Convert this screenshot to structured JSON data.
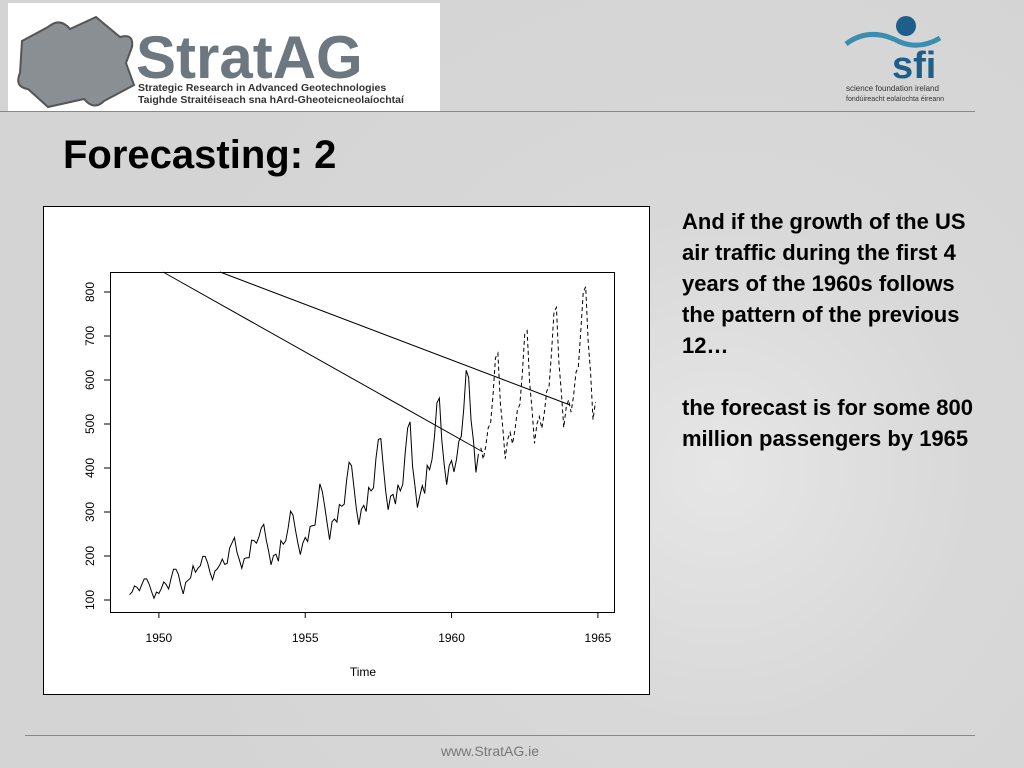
{
  "header": {
    "logo_name": "StratAG",
    "logo_line1": "Strategic Research in Advanced Geotechnologies",
    "logo_line2": "Taighde Straitéiseach sna hArd-Gheoteicneolaíochtaí",
    "sfi_name": "sfi",
    "sfi_line1": "science foundation ireland",
    "sfi_line2": "fondúireacht eolaíochta éireann"
  },
  "title": "Forecasting: 2",
  "chart_data": {
    "type": "line",
    "xlabel": "Time",
    "xlim": [
      1948.33,
      1965.55
    ],
    "ylim": [
      72.7,
      845.5
    ],
    "xticks": [
      1950,
      1955,
      1960,
      1965
    ],
    "yticks": [
      100,
      200,
      300,
      400,
      500,
      600,
      700,
      800
    ],
    "series": [
      {
        "color": "#000000",
        "line_style": "solid",
        "x": [
          1949,
          1949.083,
          1949.167,
          1949.25,
          1949.333,
          1949.417,
          1949.5,
          1949.583,
          1949.667,
          1949.75,
          1949.833,
          1949.917,
          1950,
          1950.083,
          1950.167,
          1950.25,
          1950.333,
          1950.417,
          1950.5,
          1950.583,
          1950.667,
          1950.75,
          1950.833,
          1950.917,
          1951,
          1951.083,
          1951.167,
          1951.25,
          1951.333,
          1951.417,
          1951.5,
          1951.583,
          1951.667,
          1951.75,
          1951.833,
          1951.917,
          1952,
          1952.083,
          1952.167,
          1952.25,
          1952.333,
          1952.417,
          1952.5,
          1952.583,
          1952.667,
          1952.75,
          1952.833,
          1952.917,
          1953,
          1953.083,
          1953.167,
          1953.25,
          1953.333,
          1953.417,
          1953.5,
          1953.583,
          1953.667,
          1953.75,
          1953.833,
          1953.917,
          1954,
          1954.083,
          1954.167,
          1954.25,
          1954.333,
          1954.417,
          1954.5,
          1954.583,
          1954.667,
          1954.75,
          1954.833,
          1954.917,
          1955,
          1955.083,
          1955.167,
          1955.25,
          1955.333,
          1955.417,
          1955.5,
          1955.583,
          1955.667,
          1955.75,
          1955.833,
          1955.917,
          1956,
          1956.083,
          1956.167,
          1956.25,
          1956.333,
          1956.417,
          1956.5,
          1956.583,
          1956.667,
          1956.75,
          1956.833,
          1956.917,
          1957,
          1957.083,
          1957.167,
          1957.25,
          1957.333,
          1957.417,
          1957.5,
          1957.583,
          1957.667,
          1957.75,
          1957.833,
          1957.917,
          1958,
          1958.083,
          1958.167,
          1958.25,
          1958.333,
          1958.417,
          1958.5,
          1958.583,
          1958.667,
          1958.75,
          1958.833,
          1958.917,
          1959,
          1959.083,
          1959.167,
          1959.25,
          1959.333,
          1959.417,
          1959.5,
          1959.583,
          1959.667,
          1959.75,
          1959.833,
          1959.917,
          1960,
          1960.083,
          1960.167,
          1960.25,
          1960.333,
          1960.417,
          1960.5,
          1960.583,
          1960.667,
          1960.75,
          1960.833,
          1960.917
        ],
        "values": [
          112,
          118,
          132,
          129,
          121,
          135,
          148,
          148,
          136,
          119,
          104,
          118,
          115,
          126,
          141,
          135,
          125,
          149,
          170,
          170,
          158,
          133,
          114,
          140,
          145,
          150,
          178,
          163,
          172,
          178,
          199,
          199,
          184,
          162,
          146,
          166,
          171,
          180,
          193,
          181,
          183,
          218,
          230,
          242,
          209,
          191,
          172,
          194,
          196,
          196,
          236,
          235,
          229,
          243,
          264,
          272,
          237,
          211,
          180,
          201,
          204,
          188,
          235,
          227,
          234,
          264,
          302,
          293,
          259,
          229,
          203,
          229,
          242,
          233,
          267,
          269,
          270,
          315,
          364,
          347,
          312,
          274,
          237,
          278,
          284,
          277,
          317,
          313,
          318,
          374,
          413,
          405,
          355,
          306,
          271,
          306,
          315,
          301,
          356,
          348,
          355,
          422,
          465,
          467,
          404,
          347,
          305,
          336,
          340,
          318,
          362,
          348,
          363,
          435,
          491,
          505,
          404,
          359,
          310,
          337,
          360,
          342,
          406,
          396,
          420,
          472,
          548,
          559,
          463,
          407,
          362,
          405,
          417,
          391,
          419,
          461,
          472,
          535,
          622,
          606,
          508,
          461,
          390,
          432
        ]
      },
      {
        "color": "#000000",
        "line_style": "dashed",
        "x": [
          1961,
          1961.083,
          1961.167,
          1961.25,
          1961.333,
          1961.417,
          1961.5,
          1961.583,
          1961.667,
          1961.75,
          1961.833,
          1961.917,
          1962,
          1962.083,
          1962.167,
          1962.25,
          1962.333,
          1962.417,
          1962.5,
          1962.583,
          1962.667,
          1962.75,
          1962.833,
          1962.917,
          1963,
          1963.083,
          1963.167,
          1963.25,
          1963.333,
          1963.417,
          1963.5,
          1963.583,
          1963.667,
          1963.75,
          1963.833,
          1963.917,
          1964,
          1964.083,
          1964.167,
          1964.25,
          1964.333,
          1964.417,
          1964.5,
          1964.583,
          1964.667,
          1964.75,
          1964.833,
          1964.917
        ],
        "values": [
          446,
          420,
          449,
          491,
          502,
          566,
          650,
          661,
          548,
          492,
          421,
          465,
          481,
          455,
          487,
          532,
          544,
          614,
          704,
          712,
          594,
          533,
          456,
          500,
          517,
          490,
          524,
          574,
          587,
          664,
          755,
          765,
          640,
          573,
          492,
          538,
          555,
          527,
          563,
          617,
          631,
          713,
          800,
          812,
          688,
          617,
          510,
          550
        ]
      }
    ]
  },
  "text": {
    "paragraph1": "And if the growth of the US air traffic during the first 4 years of the 1960s follows the pattern of the previous 12…",
    "paragraph2": "the forecast is for some 800 million passengers by 1965"
  },
  "footer": "www.StratAG.ie"
}
